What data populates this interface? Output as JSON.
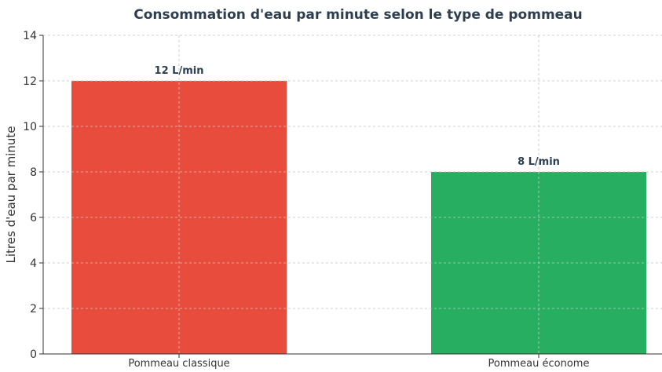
{
  "chart_data": {
    "type": "bar",
    "title": "Consommation d'eau par minute selon le type de pommeau",
    "xlabel": "",
    "ylabel": "Litres d'eau par minute",
    "categories": [
      "Pommeau classique",
      "Pommeau économe"
    ],
    "values": [
      12,
      8
    ],
    "data_labels": [
      "12 L/min",
      "8 L/min"
    ],
    "colors": [
      "#e74c3c",
      "#27ae60"
    ],
    "ylim": [
      0,
      14
    ],
    "yticks": [
      0,
      2,
      4,
      6,
      8,
      10,
      12,
      14
    ],
    "grid": true
  }
}
